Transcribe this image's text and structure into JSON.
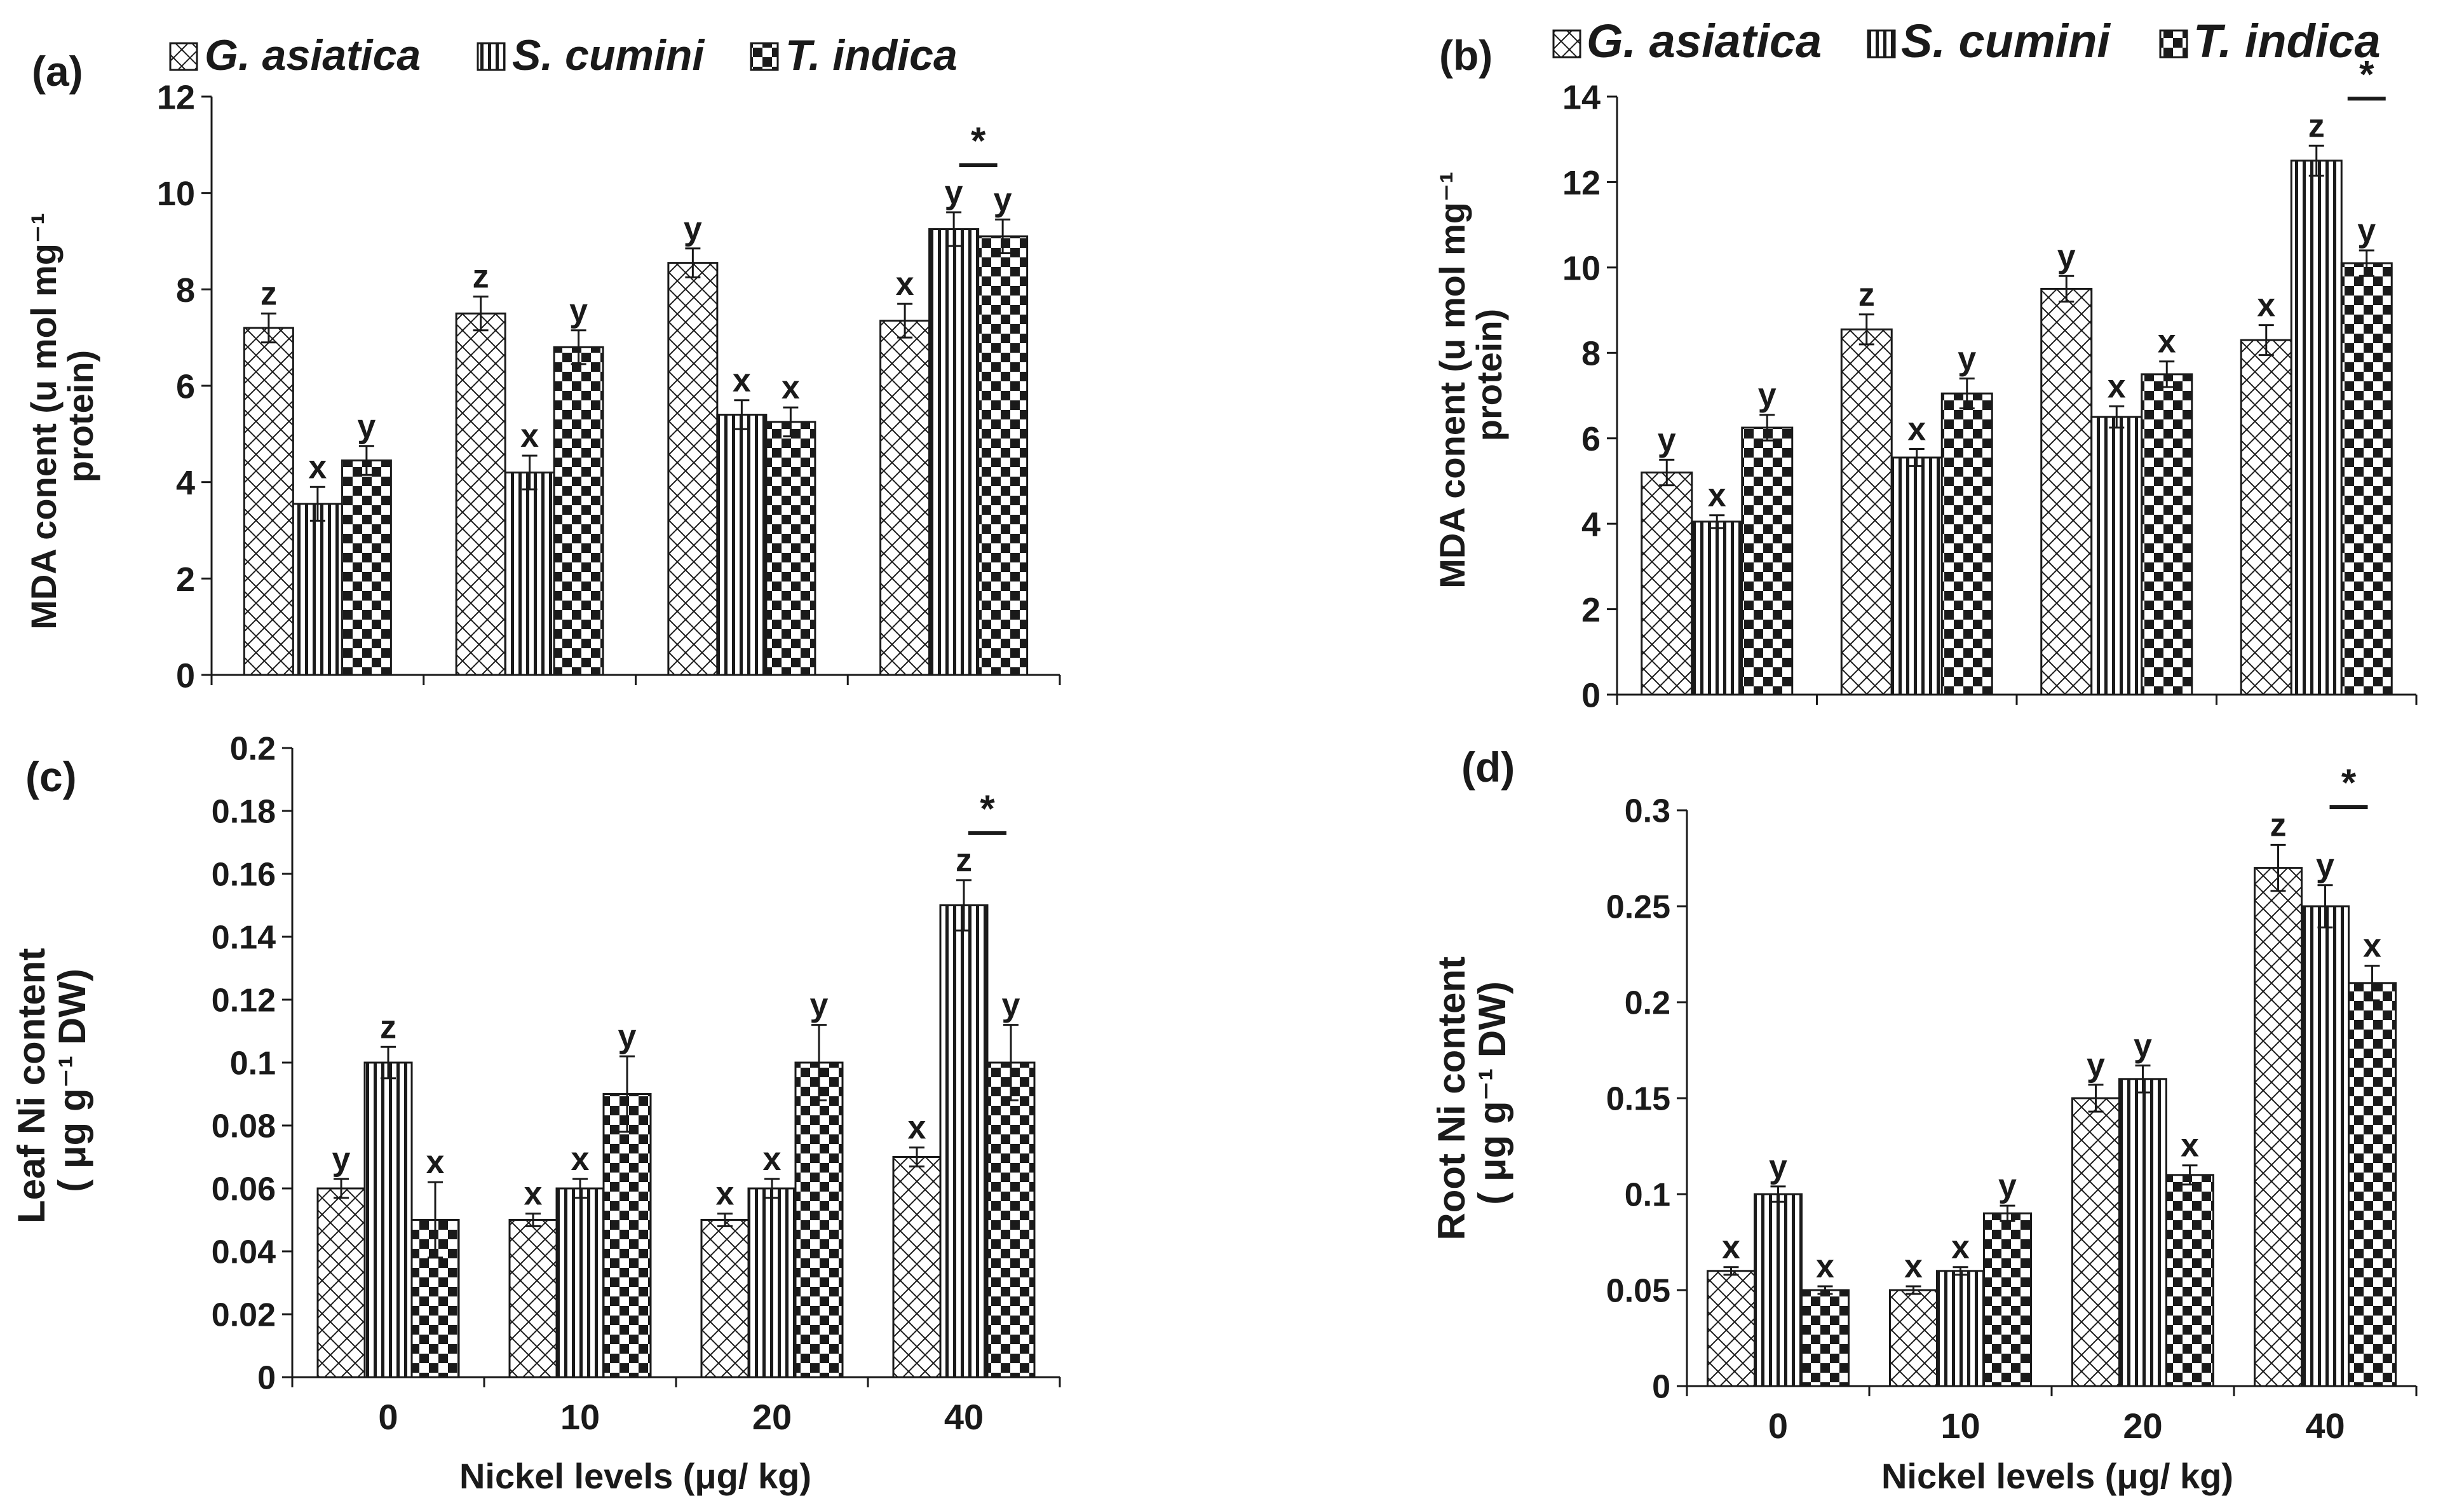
{
  "figure": {
    "xlabel": "Nickel levels (μg/ kg)"
  },
  "series_names": [
    "G. asiatica",
    "S. cumini",
    "T. indica"
  ],
  "chart_data": [
    {
      "panel": "(a)",
      "type": "bar",
      "categories": [
        "0",
        "10",
        "20",
        "40"
      ],
      "ylabel": [
        "MDA conent (u mol mg⁻¹",
        "protein)"
      ],
      "xlabel": "",
      "ylim": [
        0,
        12
      ],
      "yticks": [
        "0",
        "2",
        "4",
        "6",
        "8",
        "10",
        "12"
      ],
      "legend": "top",
      "series": [
        {
          "name": "G. asiatica",
          "values": [
            7.2,
            7.5,
            8.55,
            7.35
          ],
          "errors": [
            0.3,
            0.35,
            0.3,
            0.35
          ],
          "letters": [
            "z",
            "z",
            "y",
            "x"
          ]
        },
        {
          "name": "S. cumini",
          "values": [
            3.55,
            4.2,
            5.4,
            9.25
          ],
          "errors": [
            0.35,
            0.35,
            0.3,
            0.35
          ],
          "letters": [
            "x",
            "x",
            "x",
            "y"
          ]
        },
        {
          "name": "T. indica",
          "values": [
            4.45,
            6.8,
            5.25,
            9.1
          ],
          "errors": [
            0.3,
            0.35,
            0.3,
            0.35
          ],
          "letters": [
            "y",
            "y",
            "x",
            "y"
          ]
        }
      ],
      "annotations": [
        {
          "category": "40",
          "text": "*"
        }
      ]
    },
    {
      "panel": "(b)",
      "type": "bar",
      "categories": [
        "0",
        "10",
        "20",
        "40"
      ],
      "ylabel": [
        "MDA conent (u mol mg⁻¹",
        "protein)"
      ],
      "xlabel": "",
      "ylim": [
        0,
        14
      ],
      "yticks": [
        "0",
        "2",
        "4",
        "6",
        "8",
        "10",
        "12",
        "14"
      ],
      "legend": "top",
      "series": [
        {
          "name": "G. asiatica",
          "values": [
            5.2,
            8.55,
            9.5,
            8.3
          ],
          "errors": [
            0.3,
            0.35,
            0.3,
            0.35
          ],
          "letters": [
            "y",
            "z",
            "y",
            "x"
          ]
        },
        {
          "name": "S. cumini",
          "values": [
            4.05,
            5.55,
            6.5,
            12.5
          ],
          "errors": [
            0.15,
            0.2,
            0.25,
            0.35
          ],
          "letters": [
            "x",
            "x",
            "x",
            "z"
          ]
        },
        {
          "name": "T. indica",
          "values": [
            6.25,
            7.05,
            7.5,
            10.1
          ],
          "errors": [
            0.3,
            0.35,
            0.3,
            0.3
          ],
          "letters": [
            "y",
            "y",
            "x",
            "y"
          ]
        }
      ],
      "annotations": [
        {
          "category": "40",
          "text": "*"
        }
      ]
    },
    {
      "panel": "(c)",
      "type": "bar",
      "categories": [
        "0",
        "10",
        "20",
        "40"
      ],
      "ylabel": [
        "Leaf Ni content",
        "( μg  g⁻¹ DW)"
      ],
      "xlabel": "Nickel levels (μg/ kg)",
      "ylim": [
        0,
        0.2
      ],
      "yticks": [
        "0",
        "0.02",
        "0.04",
        "0.06",
        "0.08",
        "0.1",
        "0.12",
        "0.14",
        "0.16",
        "0.18",
        "0.2"
      ],
      "legend": "none",
      "series": [
        {
          "name": "G. asiatica",
          "values": [
            0.06,
            0.05,
            0.05,
            0.07
          ],
          "errors": [
            0.003,
            0.002,
            0.002,
            0.003
          ],
          "letters": [
            "y",
            "x",
            "x",
            "x"
          ]
        },
        {
          "name": "S. cumini",
          "values": [
            0.1,
            0.06,
            0.06,
            0.15
          ],
          "errors": [
            0.005,
            0.003,
            0.003,
            0.008
          ],
          "letters": [
            "z",
            "x",
            "x",
            "z"
          ]
        },
        {
          "name": "T. indica",
          "values": [
            0.05,
            0.09,
            0.1,
            0.1
          ],
          "errors": [
            0.012,
            0.012,
            0.012,
            0.012
          ],
          "letters": [
            "x",
            "y",
            "y",
            "y"
          ]
        }
      ],
      "annotations": [
        {
          "category": "40",
          "text": "*"
        }
      ]
    },
    {
      "panel": "(d)",
      "type": "bar",
      "categories": [
        "0",
        "10",
        "20",
        "40"
      ],
      "ylabel": [
        "Root Ni content",
        "( μg  g⁻¹ DW)"
      ],
      "xlabel": "Nickel levels (μg/ kg)",
      "ylim": [
        0,
        0.3
      ],
      "yticks": [
        "0",
        "0.05",
        "0.1",
        "0.15",
        "0.2",
        "0.25",
        "0.3"
      ],
      "legend": "none",
      "series": [
        {
          "name": "G. asiatica",
          "values": [
            0.06,
            0.05,
            0.15,
            0.27
          ],
          "errors": [
            0.002,
            0.002,
            0.007,
            0.012
          ],
          "letters": [
            "x",
            "x",
            "y",
            "z"
          ]
        },
        {
          "name": "S. cumini",
          "values": [
            0.1,
            0.06,
            0.16,
            0.25
          ],
          "errors": [
            0.004,
            0.002,
            0.007,
            0.011
          ],
          "letters": [
            "y",
            "x",
            "y",
            "y"
          ]
        },
        {
          "name": "T. indica",
          "values": [
            0.05,
            0.09,
            0.11,
            0.21
          ],
          "errors": [
            0.002,
            0.004,
            0.005,
            0.009
          ],
          "letters": [
            "x",
            "y",
            "x",
            "x"
          ]
        }
      ],
      "annotations": [
        {
          "category": "40",
          "text": "*"
        }
      ]
    }
  ]
}
